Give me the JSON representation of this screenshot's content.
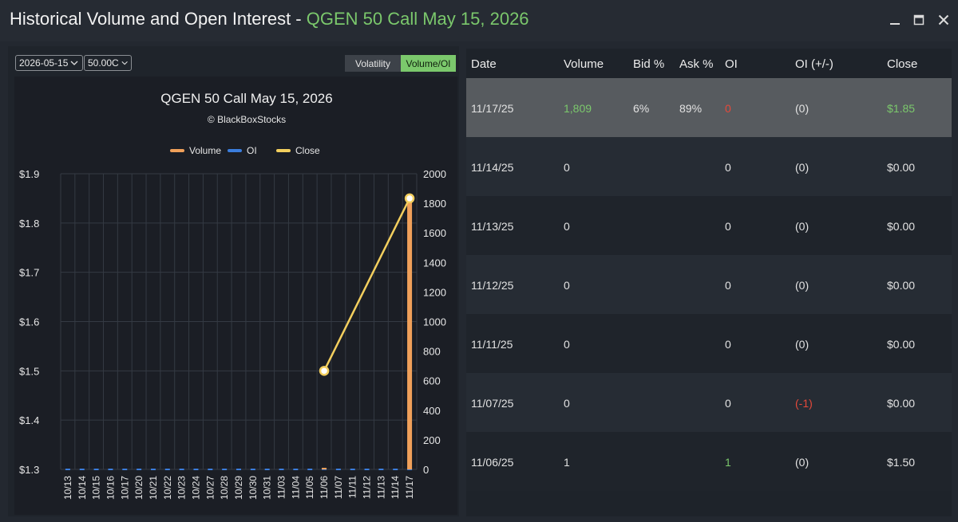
{
  "window": {
    "title_prefix": "Historical Volume and Open Interest - ",
    "title_contract": "QGEN 50 Call May 15, 2026"
  },
  "controls": {
    "expiration_value": "2026-05-15",
    "strike_value": "50.00C",
    "volatility_label": "Volatility",
    "volume_oi_label": "Volume/OI",
    "active_tab": "Volume/OI"
  },
  "chart_data": {
    "type": "bar",
    "title": "QGEN 50 Call May 15, 2026",
    "subtitle": "© BlackBoxStocks",
    "legend_position": "top",
    "categories": [
      "10/13",
      "10/14",
      "10/15",
      "10/16",
      "10/17",
      "10/20",
      "10/21",
      "10/22",
      "10/23",
      "10/24",
      "10/27",
      "10/28",
      "10/29",
      "10/30",
      "10/31",
      "11/03",
      "11/04",
      "11/05",
      "11/06",
      "11/07",
      "11/11",
      "11/12",
      "11/13",
      "11/14",
      "11/17"
    ],
    "series": [
      {
        "name": "Volume",
        "type": "bar",
        "axis": "right",
        "color": "#f0a05a",
        "values": [
          0,
          0,
          0,
          0,
          0,
          0,
          0,
          0,
          0,
          0,
          0,
          0,
          0,
          0,
          0,
          0,
          0,
          0,
          1,
          0,
          0,
          0,
          0,
          0,
          1809
        ]
      },
      {
        "name": "OI",
        "type": "line",
        "axis": "right",
        "color": "#3b7ddd",
        "values": [
          0,
          0,
          0,
          0,
          0,
          0,
          0,
          0,
          0,
          0,
          0,
          0,
          0,
          0,
          0,
          0,
          0,
          0,
          1,
          0,
          0,
          0,
          0,
          0,
          0
        ]
      },
      {
        "name": "Close",
        "type": "line",
        "axis": "left",
        "color": "#f3cf5e",
        "values": [
          null,
          null,
          null,
          null,
          null,
          null,
          null,
          null,
          null,
          null,
          null,
          null,
          null,
          null,
          null,
          null,
          null,
          null,
          1.5,
          null,
          null,
          null,
          null,
          null,
          1.85
        ]
      }
    ],
    "left_axis": {
      "ticks": [
        "$1.3",
        "$1.4",
        "$1.5",
        "$1.6",
        "$1.7",
        "$1.8",
        "$1.9"
      ],
      "min": 1.3,
      "max": 1.9
    },
    "right_axis": {
      "ticks": [
        "0",
        "200",
        "400",
        "600",
        "800",
        "1000",
        "1200",
        "1400",
        "1600",
        "1800",
        "2000"
      ],
      "min": 0,
      "max": 2000
    },
    "grid": true
  },
  "table": {
    "headers": [
      "Date",
      "Volume",
      "Bid %",
      "Ask %",
      "OI",
      "OI (+/-)",
      "Close"
    ],
    "rows": [
      {
        "date": "11/17/25",
        "volume": "1,809",
        "bid": "6%",
        "ask": "89%",
        "oi": "0",
        "oi_change": "(0)",
        "close": "$1.85"
      },
      {
        "date": "11/14/25",
        "volume": "0",
        "bid": "",
        "ask": "",
        "oi": "0",
        "oi_change": "(0)",
        "close": "$0.00"
      },
      {
        "date": "11/13/25",
        "volume": "0",
        "bid": "",
        "ask": "",
        "oi": "0",
        "oi_change": "(0)",
        "close": "$0.00"
      },
      {
        "date": "11/12/25",
        "volume": "0",
        "bid": "",
        "ask": "",
        "oi": "0",
        "oi_change": "(0)",
        "close": "$0.00"
      },
      {
        "date": "11/11/25",
        "volume": "0",
        "bid": "",
        "ask": "",
        "oi": "0",
        "oi_change": "(0)",
        "close": "$0.00"
      },
      {
        "date": "11/07/25",
        "volume": "0",
        "bid": "",
        "ask": "",
        "oi": "0",
        "oi_change": "(-1)",
        "close": "$0.00"
      },
      {
        "date": "11/06/25",
        "volume": "1",
        "bid": "",
        "ask": "",
        "oi": "1",
        "oi_change": "(0)",
        "close": "$1.50"
      }
    ]
  },
  "colors": {
    "accent_green": "#7bc86c",
    "negative_red": "#e5493a",
    "volume": "#f0a05a",
    "oi": "#3b7ddd",
    "close": "#f3cf5e"
  },
  "icons": [
    "minimize-icon",
    "maximize-icon",
    "close-icon",
    "chevron-down-icon"
  ]
}
